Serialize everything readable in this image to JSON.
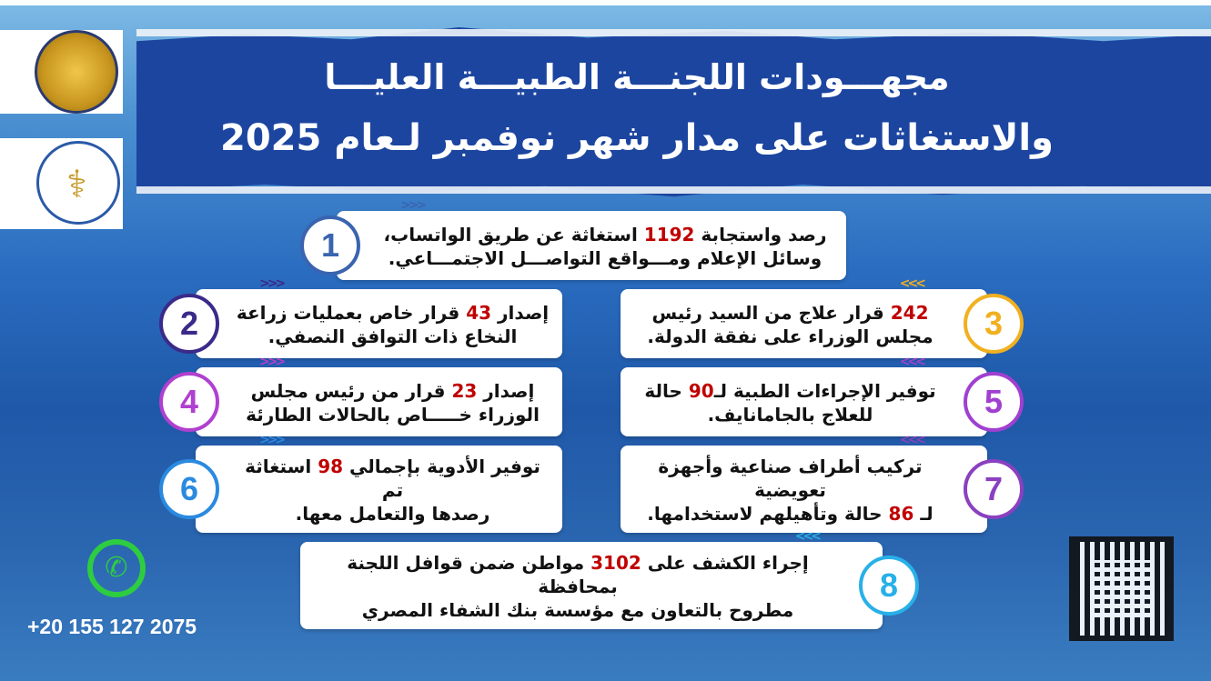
{
  "header": {
    "title_line1": "مجهـــودات اللجنـــة الطبيـــة العليـــا",
    "title_line2": "والاستغاثات على مدار شهر نوفمبر لـعام 2025"
  },
  "colors": {
    "highlight": "#c00000",
    "banner": "#1c45a0"
  },
  "items": [
    {
      "n": "1",
      "pre": "رصد واستجابة ",
      "num": "1192",
      "post": " استغاثة عن طريق الواتساب،",
      "line2": "وسائل الإعلام ومـــواقع التواصـــل الاجتمـــاعي.",
      "color": "#3a64b0"
    },
    {
      "n": "2",
      "pre": "إصدار ",
      "num": "43",
      "post": " قرار خاص بعمليات زراعة",
      "line2": "النخاع ذات التوافق النصفي.",
      "color": "#3b2a8a"
    },
    {
      "n": "3",
      "pre": "",
      "num": "242",
      "post": " قرار علاج من السيد رئيس",
      "line2": "مجلس الوزراء على نفقة الدولة.",
      "color": "#f0b020"
    },
    {
      "n": "4",
      "pre": "إصدار ",
      "num": "23",
      "post": " قرار من رئيس مجلس",
      "line2": "الوزراء خـــــاص بالحالات الطارئة",
      "color": "#b040d0"
    },
    {
      "n": "5",
      "pre": "توفير الإجراءات الطبية لـ",
      "num": "90",
      "post": " حالة",
      "line2": "للعلاج بالجامانايف.",
      "color": "#a040d0"
    },
    {
      "n": "6",
      "pre": "توفير الأدوية بإجمالي ",
      "num": "98",
      "post": " استغاثة تم",
      "line2": "رصدها والتعامل معها.",
      "color": "#2a8ae0"
    },
    {
      "n": "7",
      "pre": "تركيب أطراف صناعية وأجهزة تعويضية",
      "num": "",
      "post": "",
      "line2_pre": "لـ ",
      "line2_num": "86",
      "line2_post": " حالة وتأهيلهم لاستخدامها.",
      "color": "#8a40c0"
    },
    {
      "n": "8",
      "pre": "إجراء الكشف على ",
      "num": "3102",
      "post": " مواطن ضمن قوافل اللجنة بمحافظة",
      "line2": "مطروح بالتعاون مع مؤسسة بنك الشفاء المصري",
      "color": "#28b0e8"
    }
  ],
  "contact": {
    "phone": "+20 155 127 2075",
    "icon": "whatsapp-icon"
  }
}
